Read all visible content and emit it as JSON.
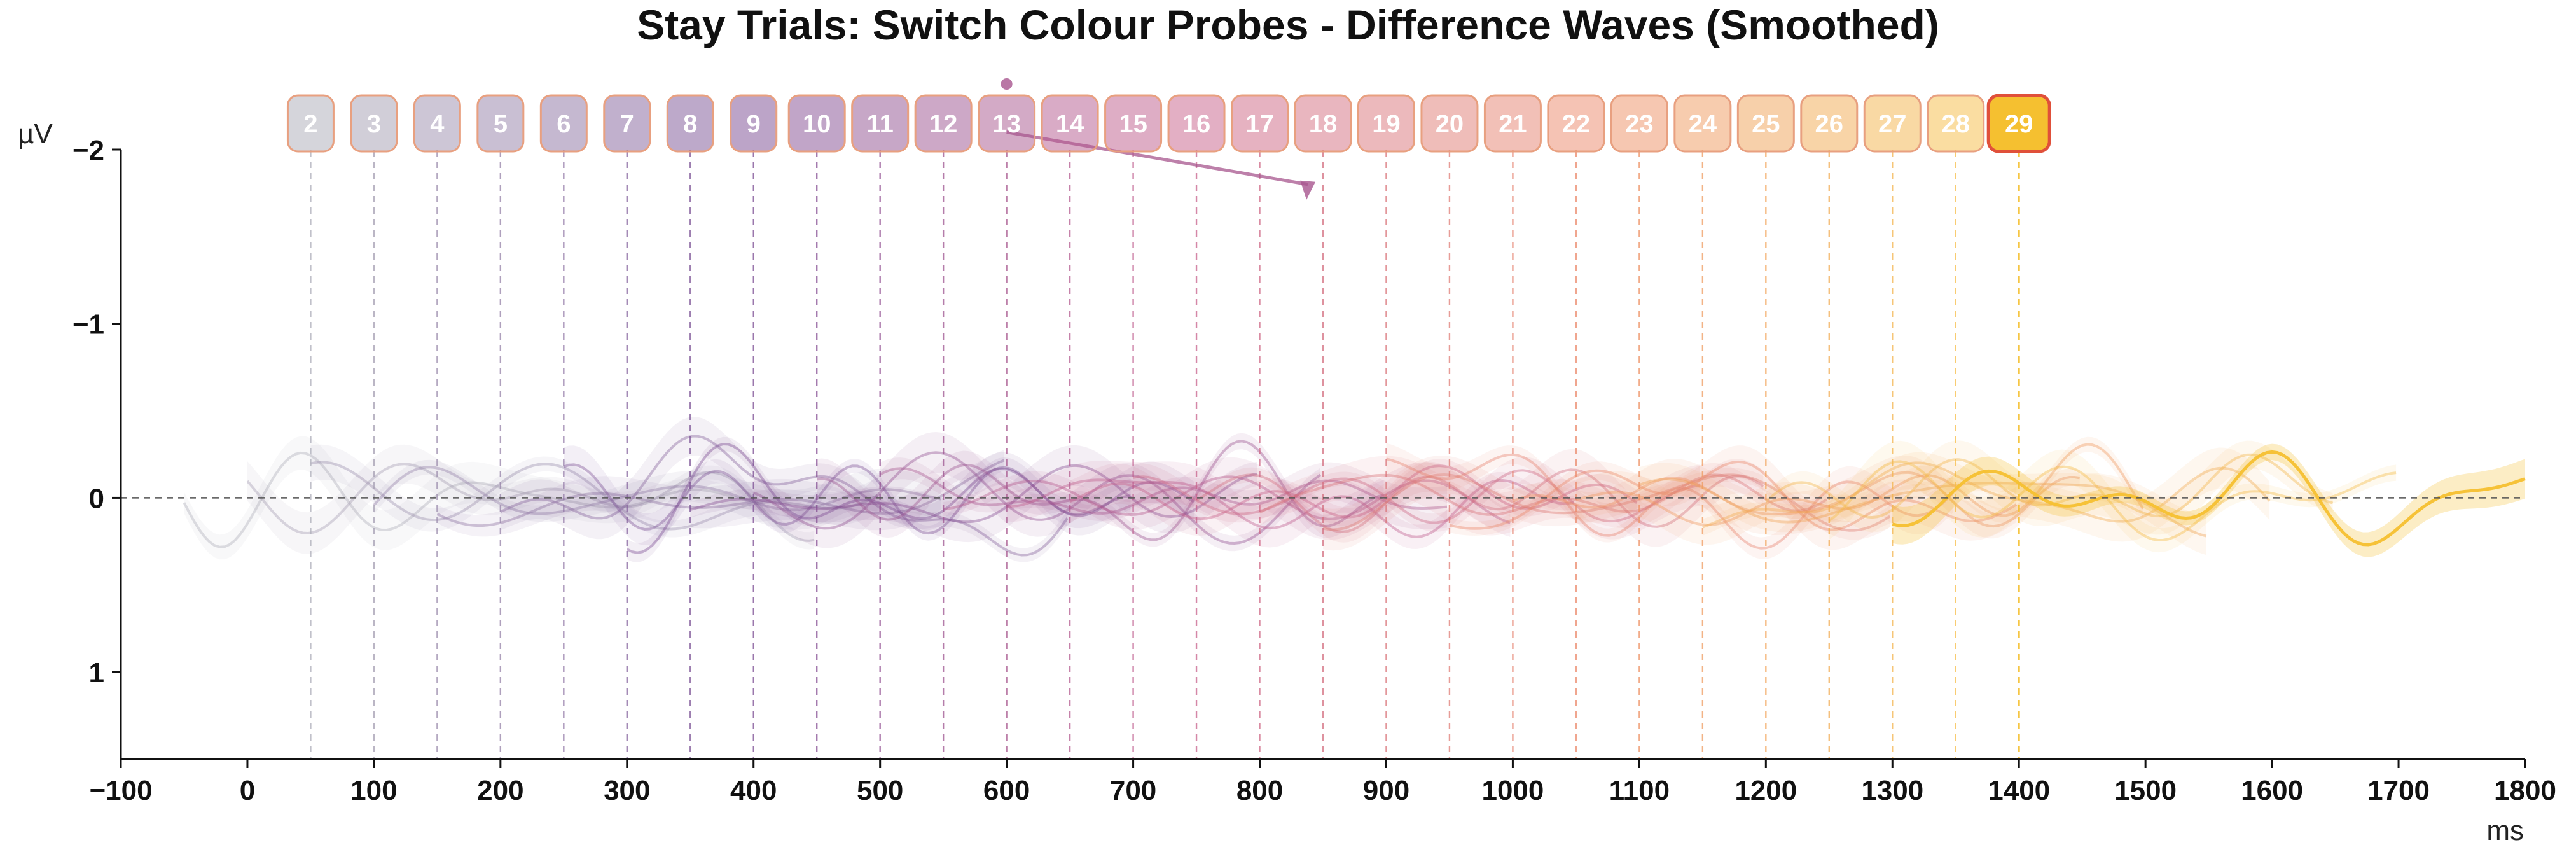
{
  "chart_data": {
    "type": "line",
    "title": "Stay Trials: Switch Colour Probes - Difference Waves (Smoothed)",
    "xlabel": "ms",
    "ylabel": "µV",
    "xlim": [
      -100,
      1800
    ],
    "ylim": [
      -2,
      1.5
    ],
    "y_inverted": true,
    "x_ticks": [
      -100,
      0,
      100,
      200,
      300,
      400,
      500,
      600,
      700,
      800,
      900,
      1000,
      1100,
      1200,
      1300,
      1400,
      1500,
      1600,
      1700,
      1800
    ],
    "x_tick_labels": [
      "−100",
      "0",
      "100",
      "200",
      "300",
      "400",
      "500",
      "600",
      "700",
      "800",
      "900",
      "1000",
      "1100",
      "1200",
      "1300",
      "1400",
      "1500",
      "1600",
      "1700",
      "1800"
    ],
    "y_ticks": [
      -2,
      -1,
      0,
      1
    ],
    "y_tick_labels": [
      "−2",
      "−1",
      "0",
      "1"
    ],
    "zero_line": true,
    "grid": false,
    "colormap": "plasma-like: grey-purple → magenta → orange → gold",
    "highlight_color": "#f5c030",
    "highlighted_marker": "29",
    "markers": [
      {
        "label": "2",
        "x": 50
      },
      {
        "label": "3",
        "x": 100
      },
      {
        "label": "4",
        "x": 150
      },
      {
        "label": "5",
        "x": 200
      },
      {
        "label": "6",
        "x": 250
      },
      {
        "label": "7",
        "x": 300
      },
      {
        "label": "8",
        "x": 350
      },
      {
        "label": "9",
        "x": 400
      },
      {
        "label": "10",
        "x": 450
      },
      {
        "label": "11",
        "x": 500
      },
      {
        "label": "12",
        "x": 550
      },
      {
        "label": "13",
        "x": 600
      },
      {
        "label": "14",
        "x": 650
      },
      {
        "label": "15",
        "x": 700
      },
      {
        "label": "16",
        "x": 750
      },
      {
        "label": "17",
        "x": 800
      },
      {
        "label": "18",
        "x": 850
      },
      {
        "label": "19",
        "x": 900
      },
      {
        "label": "20",
        "x": 950
      },
      {
        "label": "21",
        "x": 1000
      },
      {
        "label": "22",
        "x": 1050
      },
      {
        "label": "23",
        "x": 1100
      },
      {
        "label": "24",
        "x": 1150
      },
      {
        "label": "25",
        "x": 1200
      },
      {
        "label": "26",
        "x": 1250
      },
      {
        "label": "27",
        "x": 1300
      },
      {
        "label": "28",
        "x": 1350
      },
      {
        "label": "29",
        "x": 1400
      }
    ],
    "annotation_arrow": {
      "from": [
        600,
        -2.1
      ],
      "to": [
        842,
        -1.8
      ]
    },
    "series_note": "28 faint smoothed difference waves, each spanning roughly 350 ms before its marker, amplitude about ±0.3 µV around 0; highlighted wave 29 spans 1300–1800 ms",
    "series": [
      {
        "marker": "2",
        "x_range": [
          -50,
          400
        ]
      },
      {
        "marker": "3",
        "x_range": [
          0,
          450
        ]
      },
      {
        "marker": "4",
        "x_range": [
          50,
          500
        ]
      },
      {
        "marker": "5",
        "x_range": [
          100,
          550
        ]
      },
      {
        "marker": "6",
        "x_range": [
          150,
          600
        ]
      },
      {
        "marker": "7",
        "x_range": [
          200,
          650
        ]
      },
      {
        "marker": "8",
        "x_range": [
          250,
          700
        ]
      },
      {
        "marker": "9",
        "x_range": [
          300,
          750
        ]
      },
      {
        "marker": "10",
        "x_range": [
          350,
          800
        ]
      },
      {
        "marker": "11",
        "x_range": [
          400,
          850
        ]
      },
      {
        "marker": "12",
        "x_range": [
          450,
          900
        ]
      },
      {
        "marker": "13",
        "x_range": [
          500,
          950
        ]
      },
      {
        "marker": "14",
        "x_range": [
          550,
          1000
        ]
      },
      {
        "marker": "15",
        "x_range": [
          600,
          1050
        ]
      },
      {
        "marker": "16",
        "x_range": [
          650,
          1100
        ]
      },
      {
        "marker": "17",
        "x_range": [
          700,
          1150
        ]
      },
      {
        "marker": "18",
        "x_range": [
          750,
          1200
        ]
      },
      {
        "marker": "19",
        "x_range": [
          800,
          1250
        ]
      },
      {
        "marker": "20",
        "x_range": [
          850,
          1300
        ]
      },
      {
        "marker": "21",
        "x_range": [
          900,
          1350
        ]
      },
      {
        "marker": "22",
        "x_range": [
          950,
          1400
        ]
      },
      {
        "marker": "23",
        "x_range": [
          1000,
          1450
        ]
      },
      {
        "marker": "24",
        "x_range": [
          1050,
          1500
        ]
      },
      {
        "marker": "25",
        "x_range": [
          1100,
          1550
        ]
      },
      {
        "marker": "26",
        "x_range": [
          1150,
          1600
        ]
      },
      {
        "marker": "27",
        "x_range": [
          1200,
          1650
        ]
      },
      {
        "marker": "28",
        "x_range": [
          1250,
          1700
        ]
      },
      {
        "marker": "29",
        "x_range": [
          1300,
          1800
        ]
      }
    ]
  }
}
